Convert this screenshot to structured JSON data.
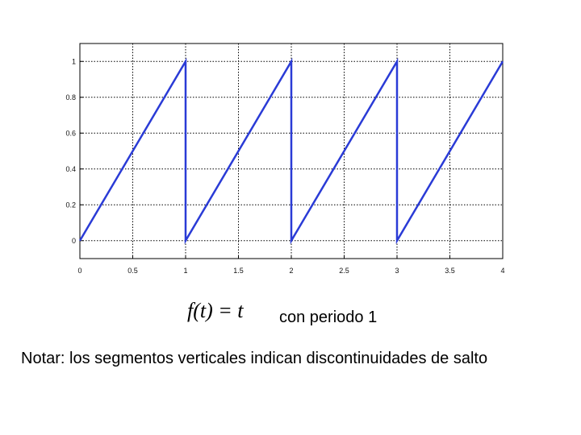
{
  "chart_data": {
    "type": "line",
    "x": [
      0,
      1,
      1,
      2,
      2,
      3,
      3,
      4
    ],
    "series": [
      {
        "color": "#2a3bd6",
        "values": [
          0,
          1,
          0,
          1,
          0,
          1,
          0,
          1
        ]
      }
    ],
    "xlim": [
      0,
      4
    ],
    "xticks": [
      0,
      0.5,
      1,
      1.5,
      2,
      2.5,
      3,
      3.5,
      4
    ],
    "ylim": [
      -0.1,
      1.1
    ],
    "yticks": [
      0,
      0.2,
      0.4,
      0.6,
      0.8,
      1
    ],
    "grid": true,
    "annotations": [
      "f(t) = t",
      "con periodo 1",
      "Notar: los segmentos verticales indican discontinuidades de salto"
    ]
  }
}
